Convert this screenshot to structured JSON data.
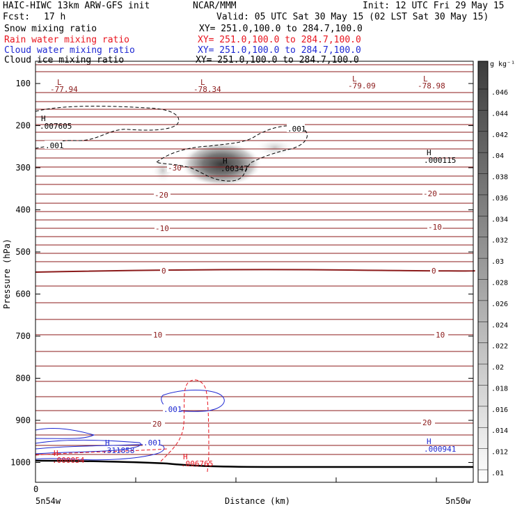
{
  "header": {
    "model": "HAIC-HIWC 13km ARW-GFS init",
    "org": "NCAR/MMM",
    "init": "Init: 12 UTC Fri 29 May 15",
    "fcst_label": "Fcst:",
    "fcst_value": "17 h",
    "valid": "Valid: 05 UTC Sat 30 May 15 (02 LST Sat 30 May 15)",
    "fields": [
      {
        "name": "Snow mixing ratio",
        "xy": "XY= 251.0,100.0 to 284.7,100.0",
        "color": "#000000"
      },
      {
        "name": "Rain water mixing ratio",
        "xy": "XY= 251.0,100.0 to 284.7,100.0",
        "color": "#e8141e"
      },
      {
        "name": "Cloud water mixing ratio",
        "xy": "XY= 251.0,100.0 to 284.7,100.0",
        "color": "#1e28d2"
      },
      {
        "name": "Cloud ice mixing ratio",
        "xy": "XY= 251.0,100.0 to 284.7,100.0",
        "color": "#000000"
      }
    ]
  },
  "chart_data": {
    "type": "contour",
    "xlabel": "Distance (km)",
    "ylabel": "Pressure (hPa)",
    "x_left_number": "0",
    "x_left_label": "5n54w",
    "x_right_label": "5n50w",
    "y_ticks": [
      100,
      200,
      300,
      400,
      500,
      600,
      700,
      800,
      900,
      1000
    ],
    "ylim": [
      1050,
      40
    ],
    "colorbar": {
      "unit": "g kg⁻¹",
      "ticks": [
        ".01",
        ".012",
        ".014",
        ".016",
        ".018",
        ".02",
        ".022",
        ".024",
        ".026",
        ".028",
        ".03",
        ".032",
        ".034",
        ".036",
        ".038",
        ".04",
        ".042",
        ".044",
        ".046"
      ],
      "color_low": "#ffffff",
      "color_high": "#3c3c3c"
    },
    "temperature_labels": [
      "-30",
      "-20",
      "-10",
      "0",
      "10",
      "20",
      "-20",
      "-10",
      "0",
      "10",
      "20"
    ],
    "extrema": [
      {
        "kind": "L",
        "value": "-77.94",
        "color": "#8b1a1a"
      },
      {
        "kind": "L",
        "value": "-78.34",
        "color": "#8b1a1a"
      },
      {
        "kind": "L",
        "value": "-79.09",
        "color": "#8b1a1a"
      },
      {
        "kind": "L",
        "value": "-78.98",
        "color": "#8b1a1a"
      },
      {
        "kind": "H",
        "value": ".007605",
        "color": "#000000"
      },
      {
        "kind": "H",
        "value": ".00347",
        "color": "#000000"
      },
      {
        "kind": "H",
        "value": ".000115",
        "color": "#000000"
      },
      {
        "kind": "H",
        "value": ".311858",
        "color": "#1e28d2"
      },
      {
        "kind": "H",
        "value": ".000941",
        "color": "#1e28d2"
      },
      {
        "kind": "H",
        "value": ".000054",
        "color": "#e8141e"
      },
      {
        "kind": "H",
        "value": ".006765",
        "color": "#e8141e"
      }
    ],
    "contour_labels": [
      {
        "value": ".001",
        "color": "#000000"
      },
      {
        "value": ".001",
        "color": "#000000"
      },
      {
        "value": ".001",
        "color": "#1e28d2"
      },
      {
        "value": ".001",
        "color": "#1e28d2"
      }
    ]
  }
}
